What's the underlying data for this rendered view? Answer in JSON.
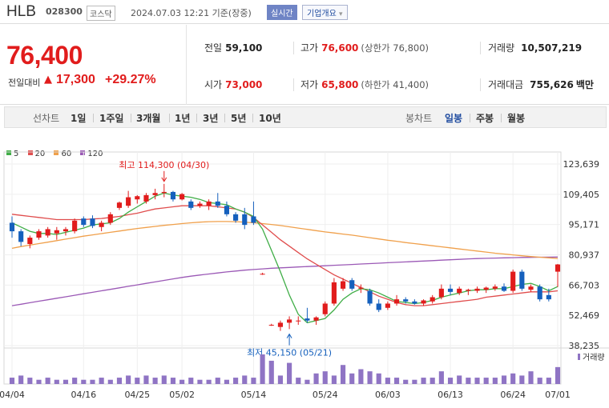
{
  "header": {
    "stock_name": "HLB",
    "stock_code": "028300",
    "market": "코스닥",
    "timestamp": "2024.07.03 12:21 기준(장중)",
    "realtime_label": "실시간",
    "overview_label": "기업개요",
    "overview_arrow": "▾"
  },
  "quote": {
    "price": "76,400",
    "change_label": "전일대비",
    "change_arrow": "▲",
    "change": "17,300",
    "change_pct": "+29.27%",
    "prev_close_label": "전일",
    "prev_close": "59,100",
    "open_label": "시가",
    "open": "73,000",
    "high_label": "고가",
    "high": "76,600",
    "upper_limit_text": "(상한가 76,800)",
    "low_label": "저가",
    "low": "65,800",
    "lower_limit_text": "(하한가 41,400)",
    "volume_label": "거래량",
    "volume": "10,507,219",
    "amount_label": "거래대금",
    "amount": "755,626",
    "amount_unit": "백만"
  },
  "period_bar": {
    "line_chart_label": "선차트",
    "line_periods": [
      "1일",
      "1주일",
      "3개월",
      "1년",
      "3년",
      "5년",
      "10년"
    ],
    "candle_chart_label": "봉차트",
    "candle_periods": [
      "일봉",
      "주봉",
      "월봉"
    ],
    "active_candle": "일봉"
  },
  "colors": {
    "up": "#e11c1c",
    "down": "#1560bd",
    "ma5": "#3fad46",
    "ma20": "#e04d4d",
    "ma60": "#f0a04b",
    "ma120": "#9b59b6",
    "volume": "#8f74c4"
  },
  "chart_data": {
    "type": "candlestick",
    "legend": [
      {
        "name": "5",
        "color": "#3fad46"
      },
      {
        "name": "20",
        "color": "#e04d4d"
      },
      {
        "name": "60",
        "color": "#f0a04b"
      },
      {
        "name": "120",
        "color": "#9b59b6"
      }
    ],
    "y_ticks": [
      "123,639",
      "109,405",
      "95,171",
      "80,937",
      "66,703",
      "52,469",
      "38,235"
    ],
    "y_tick_values": [
      123639,
      109405,
      95171,
      80937,
      66703,
      52469,
      38235
    ],
    "x_ticks": [
      "04/04",
      "04/16",
      "04/25",
      "05/02",
      "05/14",
      "05/24",
      "06/03",
      "06/13",
      "06/24",
      "07/01"
    ],
    "x_tick_index": [
      0,
      8,
      14,
      19,
      27,
      35,
      42,
      49,
      56,
      61
    ],
    "volume_label": "거래량",
    "annotations": {
      "high_text": "최고 114,300 (04/30)",
      "high_index": 17,
      "high_value": 114300,
      "low_text": "최저 45,150 (05/21)",
      "low_index": 31,
      "low_value": 45150
    },
    "candles": [
      {
        "o": 96000,
        "h": 99000,
        "l": 89000,
        "c": 92000
      },
      {
        "o": 92000,
        "h": 93000,
        "l": 85000,
        "c": 87000
      },
      {
        "o": 86000,
        "h": 90000,
        "l": 84000,
        "c": 89000
      },
      {
        "o": 89000,
        "h": 93000,
        "l": 88000,
        "c": 92000
      },
      {
        "o": 90000,
        "h": 94000,
        "l": 89000,
        "c": 93000
      },
      {
        "o": 91000,
        "h": 94000,
        "l": 88000,
        "c": 92500
      },
      {
        "o": 92000,
        "h": 94000,
        "l": 90000,
        "c": 93000
      },
      {
        "o": 92000,
        "h": 98000,
        "l": 91000,
        "c": 97000
      },
      {
        "o": 98000,
        "h": 99000,
        "l": 94000,
        "c": 95000
      },
      {
        "o": 98000,
        "h": 99500,
        "l": 93500,
        "c": 94500
      },
      {
        "o": 94000,
        "h": 97000,
        "l": 92000,
        "c": 96000
      },
      {
        "o": 96000,
        "h": 101000,
        "l": 95000,
        "c": 100000
      },
      {
        "o": 103000,
        "h": 106000,
        "l": 102000,
        "c": 105500
      },
      {
        "o": 104000,
        "h": 111000,
        "l": 103000,
        "c": 108000
      },
      {
        "o": 107000,
        "h": 109000,
        "l": 105000,
        "c": 108500
      },
      {
        "o": 106000,
        "h": 110000,
        "l": 105000,
        "c": 109000
      },
      {
        "o": 109000,
        "h": 112000,
        "l": 107000,
        "c": 110000
      },
      {
        "o": 110000,
        "h": 114300,
        "l": 108000,
        "c": 110500
      },
      {
        "o": 110500,
        "h": 111000,
        "l": 106000,
        "c": 107000
      },
      {
        "o": 107000,
        "h": 110000,
        "l": 106500,
        "c": 109500
      },
      {
        "o": 106000,
        "h": 107000,
        "l": 102000,
        "c": 103000
      },
      {
        "o": 104000,
        "h": 106000,
        "l": 103000,
        "c": 105000
      },
      {
        "o": 104000,
        "h": 107000,
        "l": 102000,
        "c": 106000
      },
      {
        "o": 106000,
        "h": 110000,
        "l": 103000,
        "c": 104000
      },
      {
        "o": 104000,
        "h": 106000,
        "l": 99000,
        "c": 100000
      },
      {
        "o": 100000,
        "h": 101000,
        "l": 96000,
        "c": 97000
      },
      {
        "o": 100000,
        "h": 103000,
        "l": 93000,
        "c": 95000
      },
      {
        "o": 99000,
        "h": 106000,
        "l": 95000,
        "c": 96000
      },
      {
        "o": 72000,
        "h": 72500,
        "l": 71500,
        "c": 72000
      },
      {
        "o": 48000,
        "h": 48500,
        "l": 47500,
        "c": 48000
      },
      {
        "o": 47000,
        "h": 50000,
        "l": 45150,
        "c": 49000
      },
      {
        "o": 49000,
        "h": 52000,
        "l": 46000,
        "c": 50500
      },
      {
        "o": 50000,
        "h": 52000,
        "l": 48000,
        "c": 50000
      },
      {
        "o": 51000,
        "h": 56000,
        "l": 49000,
        "c": 50000
      },
      {
        "o": 50000,
        "h": 52000,
        "l": 48000,
        "c": 51500
      },
      {
        "o": 53000,
        "h": 59000,
        "l": 52000,
        "c": 58000
      },
      {
        "o": 58000,
        "h": 70000,
        "l": 57000,
        "c": 68000
      },
      {
        "o": 65000,
        "h": 70000,
        "l": 64000,
        "c": 68500
      },
      {
        "o": 69000,
        "h": 70000,
        "l": 64000,
        "c": 65000
      },
      {
        "o": 65000,
        "h": 67000,
        "l": 63000,
        "c": 65500
      },
      {
        "o": 64000,
        "h": 65000,
        "l": 57000,
        "c": 58000
      },
      {
        "o": 58000,
        "h": 60000,
        "l": 54000,
        "c": 55000
      },
      {
        "o": 56000,
        "h": 59000,
        "l": 55000,
        "c": 58000
      },
      {
        "o": 58000,
        "h": 62000,
        "l": 57000,
        "c": 60000
      },
      {
        "o": 60000,
        "h": 61000,
        "l": 58000,
        "c": 59000
      },
      {
        "o": 59000,
        "h": 60000,
        "l": 57500,
        "c": 58000
      },
      {
        "o": 58000,
        "h": 60000,
        "l": 57000,
        "c": 59500
      },
      {
        "o": 59000,
        "h": 62000,
        "l": 58000,
        "c": 61000
      },
      {
        "o": 61000,
        "h": 67000,
        "l": 60000,
        "c": 65000
      },
      {
        "o": 65000,
        "h": 67000,
        "l": 62000,
        "c": 63500
      },
      {
        "o": 63000,
        "h": 66000,
        "l": 62000,
        "c": 65000
      },
      {
        "o": 64000,
        "h": 65000,
        "l": 62000,
        "c": 64500
      },
      {
        "o": 64000,
        "h": 66000,
        "l": 63000,
        "c": 65000
      },
      {
        "o": 64500,
        "h": 66000,
        "l": 63000,
        "c": 65500
      },
      {
        "o": 65000,
        "h": 67000,
        "l": 64000,
        "c": 66000
      },
      {
        "o": 66000,
        "h": 67500,
        "l": 63500,
        "c": 64000
      },
      {
        "o": 64000,
        "h": 74000,
        "l": 63000,
        "c": 73000
      },
      {
        "o": 73000,
        "h": 74000,
        "l": 64000,
        "c": 65000
      },
      {
        "o": 64500,
        "h": 67000,
        "l": 63500,
        "c": 66000
      },
      {
        "o": 66000,
        "h": 67000,
        "l": 59000,
        "c": 60000
      },
      {
        "o": 62000,
        "h": 65000,
        "l": 59000,
        "c": 60000
      },
      {
        "o": 73000,
        "h": 76600,
        "l": 65800,
        "c": 76400
      }
    ],
    "ma5": [
      96000,
      94000,
      92000,
      91000,
      91000,
      90500,
      91500,
      92500,
      93500,
      95000,
      95500,
      96000,
      98000,
      101000,
      103500,
      106000,
      108500,
      110000,
      109000,
      108500,
      108000,
      107000,
      105500,
      105000,
      104500,
      102500,
      101000,
      99000,
      93000,
      83000,
      73000,
      62000,
      53000,
      49000,
      50000,
      51000,
      55000,
      60000,
      63000,
      65000,
      64500,
      63000,
      61000,
      59000,
      58500,
      58000,
      58500,
      59500,
      61000,
      62000,
      63000,
      64000,
      64500,
      64500,
      65000,
      65000,
      66000,
      67000,
      67500,
      66000,
      64000,
      66000
    ],
    "ma20": [
      100000,
      99500,
      99000,
      98500,
      98000,
      97500,
      97500,
      97500,
      97500,
      97800,
      98000,
      98500,
      99000,
      99800,
      100500,
      101500,
      102500,
      103000,
      103500,
      104000,
      104000,
      104000,
      104000,
      103500,
      103000,
      102500,
      101000,
      98500,
      95000,
      91500,
      88000,
      85000,
      82000,
      79000,
      76500,
      74000,
      71500,
      69500,
      67500,
      65500,
      63500,
      61500,
      60000,
      58500,
      57500,
      57000,
      57000,
      57500,
      58000,
      58500,
      59000,
      59500,
      60000,
      61000,
      61500,
      62000,
      62500,
      63000,
      63500,
      63500,
      63500,
      64000
    ],
    "ma60": [
      84000,
      84800,
      85500,
      86200,
      86900,
      87600,
      88300,
      89000,
      89700,
      90300,
      90900,
      91500,
      92100,
      92700,
      93300,
      93800,
      94300,
      94800,
      95200,
      95600,
      96000,
      96300,
      96500,
      96600,
      96600,
      96500,
      96300,
      96000,
      95600,
      95200,
      94700,
      94100,
      93500,
      92900,
      92300,
      91700,
      91200,
      90700,
      90200,
      89600,
      89000,
      88400,
      87800,
      87300,
      86700,
      86200,
      85700,
      85200,
      84700,
      84200,
      83700,
      83200,
      82700,
      82200,
      81700,
      81300,
      80900,
      80500,
      80100,
      79800,
      79500,
      79200
    ],
    "ma120": [
      57000,
      57700,
      58400,
      59100,
      59800,
      60500,
      61200,
      61900,
      62600,
      63300,
      64000,
      64700,
      65400,
      66100,
      66800,
      67500,
      68200,
      68900,
      69600,
      70300,
      70900,
      71400,
      71900,
      72400,
      72900,
      73300,
      73700,
      74000,
      74300,
      74600,
      74800,
      75000,
      75200,
      75400,
      75600,
      75800,
      76000,
      76200,
      76400,
      76600,
      76800,
      77000,
      77200,
      77400,
      77600,
      77800,
      78000,
      78200,
      78400,
      78600,
      78800,
      79000,
      79150,
      79300,
      79400,
      79500,
      79600,
      79700,
      79750,
      79800,
      79850,
      79900
    ],
    "volume": [
      3,
      4,
      3,
      2,
      3,
      2,
      2,
      3,
      2,
      2,
      3,
      2,
      3,
      4,
      3,
      4,
      3,
      4,
      3,
      2,
      3,
      2,
      2,
      3,
      2,
      3,
      4,
      3,
      14,
      11,
      4,
      10,
      3,
      2,
      5,
      6,
      4,
      9,
      5,
      7,
      6,
      5,
      3,
      3,
      2,
      2,
      3,
      3,
      6,
      3,
      4,
      3,
      3,
      3,
      3,
      4,
      5,
      4,
      6,
      3,
      3,
      8
    ]
  }
}
